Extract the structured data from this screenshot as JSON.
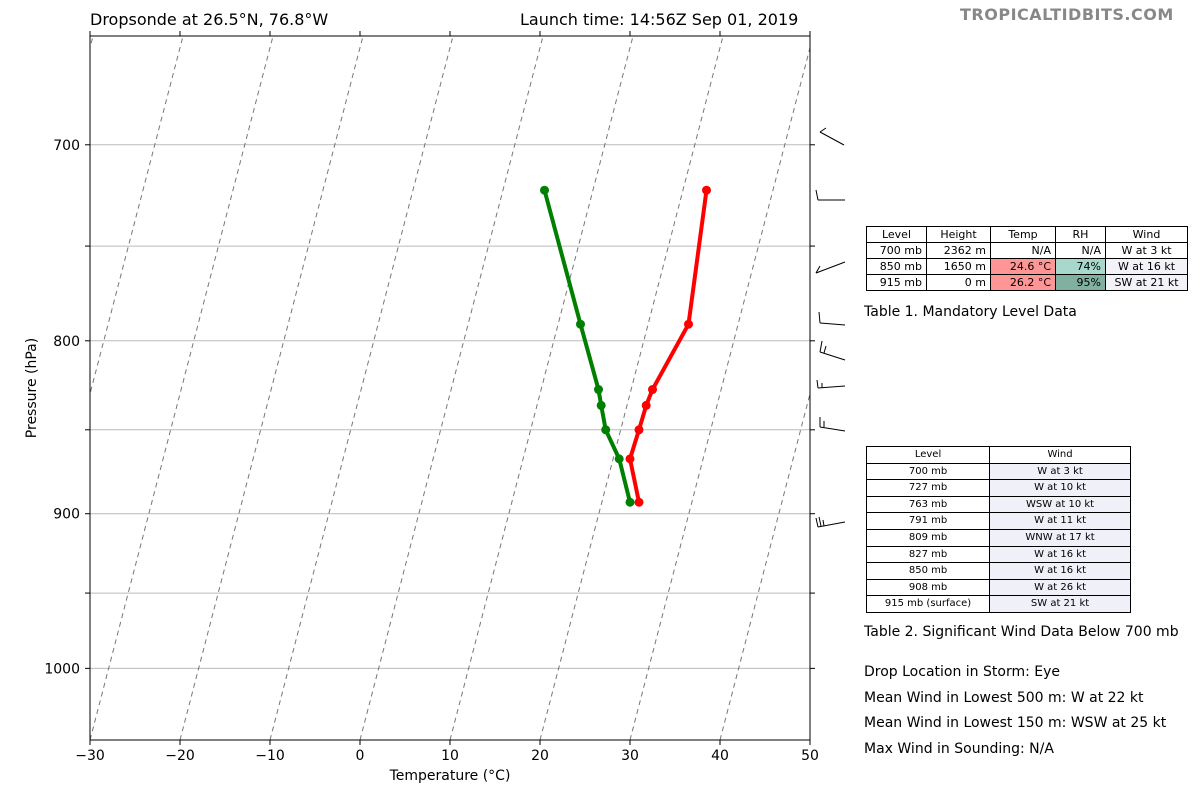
{
  "header": {
    "title_left": "Dropsonde at 26.5°N, 76.8°W",
    "title_right": "Launch time: 14:56Z Sep 01, 2019",
    "watermark": "TROPICALTIDBITS.COM"
  },
  "chart_data": {
    "type": "line",
    "title": "Dropsonde at 26.5°N, 76.8°W",
    "xlabel": "Temperature (°C)",
    "ylabel": "Pressure (hPa)",
    "xlim": [
      -30,
      50
    ],
    "ylim": [
      1050,
      650
    ],
    "y_scale": "log",
    "x_ticks": [
      -30,
      -20,
      -10,
      0,
      10,
      20,
      30,
      40,
      50
    ],
    "x_tick_labels": [
      "−30",
      "−20",
      "−10",
      "0",
      "10",
      "20",
      "30",
      "40",
      "50"
    ],
    "y_tick_labels": [
      700,
      800,
      900,
      1000
    ],
    "grid": true,
    "skewed_isotherms": true,
    "series": [
      {
        "color": "#ff0000",
        "points": [
          [
            38.5,
            722
          ],
          [
            36.5,
            791
          ],
          [
            32.5,
            827
          ],
          [
            31.8,
            836
          ],
          [
            31.0,
            850
          ],
          [
            30.0,
            867
          ],
          [
            31.0,
            893
          ]
        ]
      },
      {
        "color": "#008000",
        "points": [
          [
            20.5,
            722
          ],
          [
            24.5,
            791
          ],
          [
            26.5,
            827
          ],
          [
            26.8,
            836
          ],
          [
            27.3,
            850
          ],
          [
            28.8,
            867
          ],
          [
            30.0,
            893
          ]
        ]
      }
    ]
  },
  "table1": {
    "headers": [
      "Level",
      "Height",
      "Temp",
      "RH",
      "Wind"
    ],
    "rows": [
      [
        "700 mb",
        "2362 m",
        "N/A",
        "N/A",
        "W at 3 kt"
      ],
      [
        "850 mb",
        "1650 m",
        "24.6 °C",
        "74%",
        "W at 16 kt"
      ],
      [
        "915 mb",
        "0 m",
        "26.2 °C",
        "95%",
        "SW at 21 kt"
      ]
    ],
    "caption": "Table 1. Mandatory Level Data",
    "colors": {
      "temp_hot": "#ff9696",
      "rh_74": "#a8d8cc",
      "rh_95": "#80b0a0",
      "wind_bg": "#f2f2f8"
    }
  },
  "table2": {
    "headers": [
      "Level",
      "Wind"
    ],
    "rows": [
      [
        "700 mb",
        "W at 3 kt"
      ],
      [
        "727 mb",
        "W at 10 kt"
      ],
      [
        "763 mb",
        "WSW at 10 kt"
      ],
      [
        "791 mb",
        "W at 11 kt"
      ],
      [
        "809 mb",
        "WNW at 17 kt"
      ],
      [
        "827 mb",
        "W at 16 kt"
      ],
      [
        "850 mb",
        "W at 16 kt"
      ],
      [
        "908 mb",
        "W at 26 kt"
      ],
      [
        "915 mb (surface)",
        "SW at 21 kt"
      ]
    ],
    "caption": "Table 2. Significant Wind Data Below 700 mb"
  },
  "info": {
    "drop_location": "Drop Location in Storm: Eye",
    "mean_wind_500": "Mean Wind in Lowest 500 m:  W at 22 kt",
    "mean_wind_150": "Mean Wind in Lowest 150 m:  WSW at 25 kt",
    "max_wind": "Max Wind in Sounding:  N/A"
  }
}
